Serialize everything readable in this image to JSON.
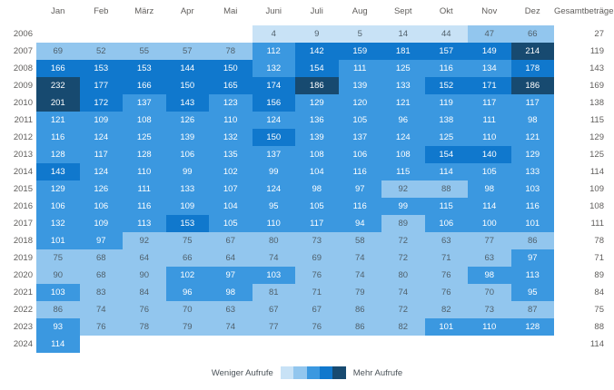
{
  "chart_data": {
    "type": "heatmap",
    "total_column_label": "Gesamtbeträge",
    "x_labels": [
      "Jan",
      "Feb",
      "März",
      "Apr",
      "Mai",
      "Juni",
      "Juli",
      "Aug",
      "Sept",
      "Okt",
      "Nov",
      "Dez"
    ],
    "y_labels": [
      "2006",
      "2007",
      "2008",
      "2009",
      "2010",
      "2011",
      "2012",
      "2013",
      "2014",
      "2015",
      "2016",
      "2017",
      "2018",
      "2019",
      "2020",
      "2021",
      "2022",
      "2023",
      "2024"
    ],
    "values": [
      [
        null,
        null,
        null,
        null,
        null,
        4,
        9,
        5,
        14,
        44,
        47,
        66
      ],
      [
        69,
        52,
        55,
        57,
        78,
        112,
        142,
        159,
        181,
        157,
        149,
        214
      ],
      [
        166,
        153,
        153,
        144,
        150,
        132,
        154,
        111,
        125,
        116,
        134,
        178
      ],
      [
        232,
        177,
        166,
        150,
        165,
        174,
        186,
        139,
        133,
        152,
        171,
        186
      ],
      [
        201,
        172,
        137,
        143,
        123,
        156,
        129,
        120,
        121,
        119,
        117,
        117
      ],
      [
        121,
        109,
        108,
        126,
        110,
        124,
        136,
        105,
        96,
        138,
        111,
        98
      ],
      [
        116,
        124,
        125,
        139,
        132,
        150,
        139,
        137,
        124,
        125,
        110,
        121
      ],
      [
        128,
        117,
        128,
        106,
        135,
        137,
        108,
        106,
        108,
        154,
        140,
        129
      ],
      [
        143,
        124,
        110,
        99,
        102,
        99,
        104,
        116,
        115,
        114,
        105,
        133
      ],
      [
        129,
        126,
        111,
        133,
        107,
        124,
        98,
        97,
        92,
        88,
        98,
        103
      ],
      [
        106,
        106,
        116,
        109,
        104,
        95,
        105,
        116,
        99,
        115,
        114,
        116
      ],
      [
        132,
        109,
        113,
        153,
        105,
        110,
        117,
        94,
        89,
        106,
        100,
        101
      ],
      [
        101,
        97,
        92,
        75,
        67,
        80,
        73,
        58,
        72,
        63,
        77,
        86
      ],
      [
        75,
        68,
        64,
        66,
        64,
        74,
        69,
        74,
        72,
        71,
        63,
        97
      ],
      [
        90,
        68,
        90,
        102,
        97,
        103,
        76,
        74,
        80,
        76,
        98,
        113
      ],
      [
        103,
        83,
        84,
        96,
        98,
        81,
        71,
        79,
        74,
        76,
        70,
        95
      ],
      [
        86,
        74,
        76,
        70,
        63,
        67,
        67,
        86,
        72,
        82,
        73,
        87
      ],
      [
        93,
        76,
        78,
        79,
        74,
        77,
        76,
        86,
        82,
        101,
        110,
        128
      ],
      [
        114,
        null,
        null,
        null,
        null,
        null,
        null,
        null,
        null,
        null,
        null,
        null
      ]
    ],
    "row_totals": [
      27,
      119,
      143,
      169,
      138,
      115,
      129,
      125,
      114,
      109,
      108,
      111,
      78,
      71,
      89,
      84,
      75,
      88,
      114
    ],
    "legend": {
      "min_label": "Weniger Aufrufe",
      "max_label": "Mehr Aufrufe"
    },
    "palette": [
      "#c8e2f6",
      "#92c6ee",
      "#3b98e0",
      "#1078cd",
      "#174a70"
    ],
    "thresholds": [
      44,
      92,
      139,
      181
    ],
    "cell_text_dark": "#50606b",
    "cell_text_light": "#ffffff",
    "axis_text_color": "#605e5c"
  }
}
